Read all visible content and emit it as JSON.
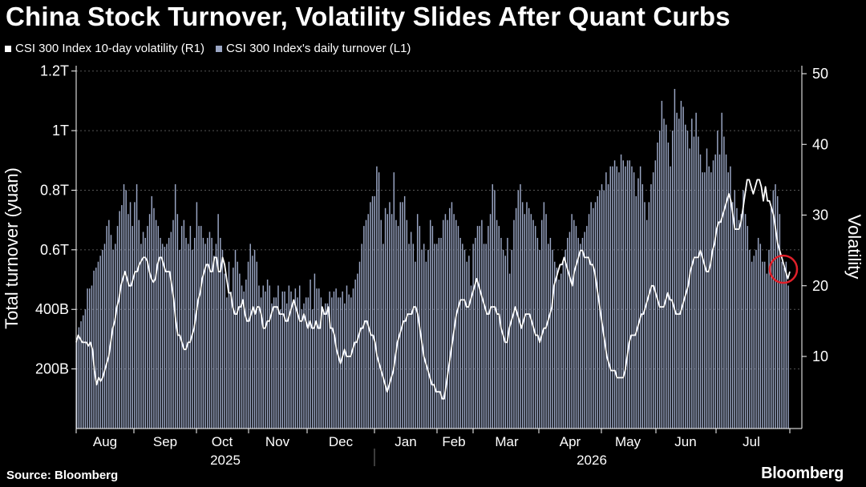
{
  "title": "China Stock Turnover, Volatility Slides After Quant Curbs",
  "legend": {
    "volatility_label": "CSI 300 Index 10-day volatility (R1)",
    "turnover_label": "CSI 300 Index's daily turnover (L1)"
  },
  "source": "Source: Bloomberg",
  "brand": "Bloomberg",
  "colors": {
    "background": "#000000",
    "bars": "#9aa6c4",
    "line": "#ffffff",
    "highlight_circle": "#e0202a",
    "grid": "#555555"
  },
  "chart_data": {
    "type": "bar+line",
    "x_axis": {
      "months": [
        "Aug",
        "Sep",
        "Oct",
        "Nov",
        "Dec",
        "Jan",
        "Feb",
        "Mar",
        "Apr",
        "May",
        "Jun",
        "Jul"
      ],
      "years": [
        "2025",
        "2026"
      ]
    },
    "left_axis": {
      "label": "Total turnover (yuan)",
      "ticks": [
        "200B",
        "400B",
        "0.6T",
        "0.8T",
        "1T",
        "1.2T"
      ],
      "range_billion": [
        0,
        1200
      ]
    },
    "right_axis": {
      "label": "Volatility",
      "ticks": [
        "10",
        "20",
        "30",
        "40",
        "50"
      ],
      "range": [
        0,
        50
      ]
    },
    "series": [
      {
        "name": "CSI 300 Index's daily turnover (L1)",
        "axis": "left",
        "type": "bar",
        "values": [
          300,
          340,
          360,
          380,
          400,
          470,
          470,
          480,
          530,
          540,
          560,
          580,
          600,
          620,
          680,
          700,
          650,
          600,
          620,
          680,
          730,
          750,
          820,
          800,
          720,
          760,
          680,
          760,
          820,
          700,
          620,
          660,
          640,
          680,
          720,
          780,
          740,
          700,
          680,
          640,
          620,
          610,
          620,
          640,
          660,
          700,
          820,
          720,
          600,
          680,
          700,
          640,
          620,
          680,
          600,
          640,
          760,
          680,
          680,
          640,
          620,
          640,
          660,
          640,
          580,
          620,
          720,
          640,
          600,
          520,
          440,
          560,
          460,
          540,
          600,
          560,
          520,
          480,
          460,
          500,
          560,
          620,
          580,
          600,
          560,
          480,
          440,
          480,
          460,
          500,
          480,
          420,
          440,
          440,
          480,
          400,
          460,
          460,
          420,
          480,
          460,
          420,
          470,
          440,
          480,
          400,
          420,
          440,
          440,
          500,
          400,
          520,
          470,
          470,
          440,
          400,
          420,
          420,
          460,
          440,
          460,
          470,
          440,
          440,
          460,
          420,
          480,
          450,
          440,
          470,
          500,
          520,
          560,
          620,
          680,
          700,
          720,
          760,
          780,
          780,
          880,
          860,
          700,
          620,
          740,
          720,
          760,
          720,
          860,
          700,
          680,
          760,
          760,
          780,
          700,
          620,
          660,
          620,
          560,
          720,
          680,
          600,
          620,
          560,
          600,
          700,
          680,
          620,
          620,
          640,
          640,
          700,
          720,
          700,
          740,
          760,
          720,
          700,
          680,
          640,
          620,
          600,
          560,
          580,
          480,
          620,
          640,
          680,
          680,
          700,
          620,
          620,
          680,
          720,
          820,
          800,
          700,
          680,
          640,
          600,
          580,
          640,
          520,
          600,
          700,
          740,
          800,
          820,
          760,
          720,
          760,
          740,
          720,
          700,
          680,
          640,
          600,
          700,
          760,
          720,
          620,
          640,
          600,
          560,
          540,
          500,
          520,
          560,
          600,
          640,
          660,
          720,
          700,
          680,
          640,
          620,
          640,
          660,
          680,
          720,
          760,
          740,
          760,
          780,
          800,
          820,
          800,
          860,
          820,
          880,
          880,
          900,
          880,
          860,
          920,
          900,
          880,
          900,
          900,
          880,
          860,
          780,
          840,
          880,
          820,
          760,
          700,
          760,
          820,
          860,
          900,
          960,
          1000,
          1100,
          1040,
          1020,
          960,
          880,
          1000,
          1140,
          1060,
          1040,
          1100,
          1080,
          1020,
          1000,
          940,
          1040,
          980,
          1060,
          980,
          920,
          860,
          860,
          940,
          880,
          860,
          900,
          920,
          1000,
          920,
          1060,
          980,
          920,
          860,
          880,
          760,
          800,
          740,
          700,
          720,
          800,
          720,
          680,
          600,
          560,
          580,
          600,
          640,
          620,
          560,
          560,
          520,
          600,
          740,
          800,
          820,
          780,
          720,
          560,
          540,
          560,
          480
        ]
      },
      {
        "name": "CSI 300 Index 10-day volatility (R1)",
        "axis": "right",
        "type": "line",
        "values": [
          12,
          13,
          12.5,
          12,
          12,
          12,
          11.5,
          12,
          11,
          8,
          6,
          7,
          6.5,
          7,
          8,
          9,
          10,
          12,
          14,
          15,
          17,
          18,
          20,
          21,
          22,
          21,
          20,
          20,
          21,
          22,
          22,
          23,
          23.5,
          24,
          24,
          23.5,
          22,
          21,
          20.5,
          21,
          23,
          24,
          24,
          23,
          22,
          22,
          22,
          20,
          18,
          15,
          13,
          13,
          12,
          11,
          11,
          12,
          12,
          13,
          14,
          16,
          18,
          19,
          21,
          22,
          23,
          23,
          22,
          22,
          24,
          24,
          22,
          22,
          24,
          23,
          21,
          19,
          19,
          17,
          16,
          16,
          17,
          17,
          18,
          16,
          15,
          15,
          16,
          17,
          16,
          17,
          17,
          16,
          14,
          14,
          15,
          15,
          16,
          17,
          17,
          17,
          16,
          16,
          16,
          15,
          15,
          16,
          17,
          18,
          17,
          16,
          15,
          15,
          16,
          15,
          14,
          15,
          14,
          14,
          15,
          14,
          14,
          17,
          16,
          16,
          17,
          14,
          14,
          13,
          11,
          10,
          9,
          10,
          11,
          10,
          10,
          10,
          11,
          12,
          12,
          13,
          14,
          14,
          15,
          15,
          14,
          13,
          13,
          12,
          10,
          9,
          8,
          7,
          6,
          5,
          6,
          7,
          8,
          10,
          12,
          13,
          14,
          15,
          15,
          16,
          16,
          16,
          17,
          17,
          16,
          14,
          12,
          10,
          9,
          8,
          7,
          6,
          6,
          5,
          5,
          5,
          4,
          4,
          6,
          8,
          10,
          12,
          14,
          16,
          17,
          18,
          18,
          18,
          17,
          17,
          18,
          19,
          20,
          21,
          20,
          19,
          18,
          17,
          16,
          16,
          17,
          17,
          17,
          16,
          16,
          14,
          13,
          12,
          12,
          14,
          15,
          16,
          17,
          16,
          15,
          14,
          15,
          16,
          16,
          16,
          15,
          14,
          13,
          13,
          12,
          13,
          14,
          14,
          15,
          16,
          17,
          20,
          21,
          22,
          23,
          23,
          24,
          23,
          22,
          21,
          20,
          22,
          23,
          24,
          25,
          25,
          24,
          24,
          24,
          23,
          23,
          22,
          20,
          18,
          16,
          14,
          12,
          10,
          9,
          8,
          8,
          8,
          7,
          7,
          7,
          7,
          8,
          10,
          12,
          13,
          13,
          13,
          14,
          15,
          16,
          16,
          17,
          18,
          19,
          20,
          20,
          19,
          18,
          17,
          17,
          17,
          18,
          19,
          18,
          18,
          17,
          16,
          16,
          16,
          17,
          18,
          19,
          20,
          22,
          23,
          24,
          24,
          24,
          25,
          24,
          23,
          22,
          22,
          23,
          25,
          26,
          28,
          29,
          29,
          30,
          31,
          32,
          33,
          32,
          30,
          28,
          28,
          28,
          29,
          31,
          33,
          35,
          35,
          34,
          33,
          34,
          35,
          35,
          34,
          32,
          34,
          32,
          32,
          31,
          30,
          28,
          26,
          25,
          24,
          23,
          22,
          21,
          22
        ]
      }
    ],
    "highlight": "last value"
  }
}
